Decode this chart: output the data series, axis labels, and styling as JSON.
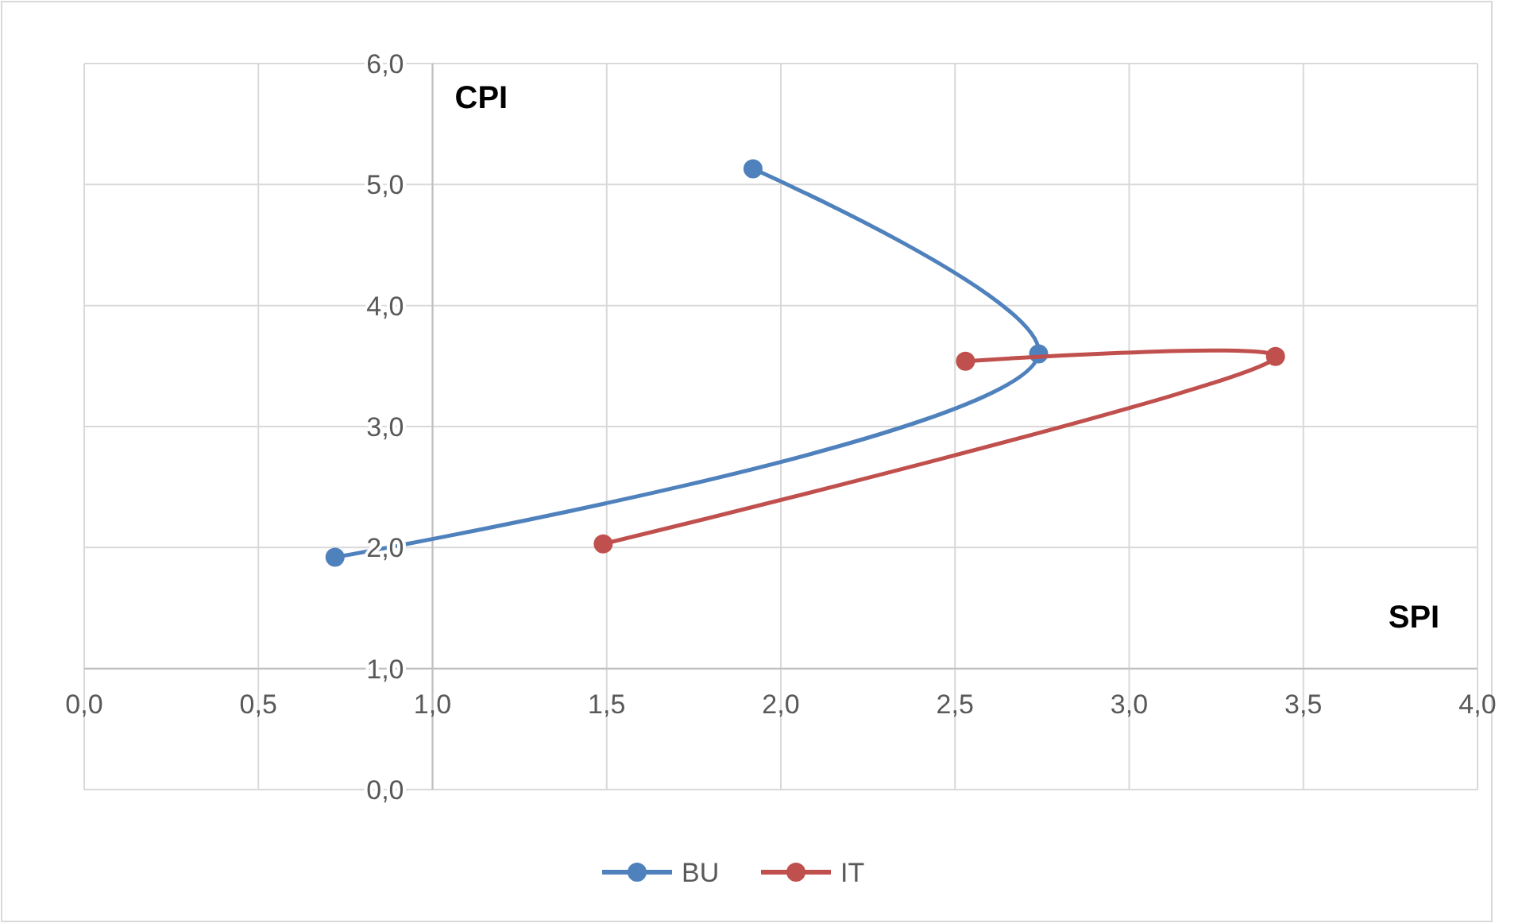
{
  "chart_data": {
    "type": "line",
    "xlabel": "SPI",
    "ylabel": "CPI",
    "xlim": [
      0,
      4
    ],
    "ylim": [
      0,
      6
    ],
    "xticks": [
      {
        "value": 0,
        "label": "0,0"
      },
      {
        "value": 0.5,
        "label": "0,5"
      },
      {
        "value": 1,
        "label": "1,0"
      },
      {
        "value": 1.5,
        "label": "1,5"
      },
      {
        "value": 2,
        "label": "2,0"
      },
      {
        "value": 2.5,
        "label": "2,5"
      },
      {
        "value": 3,
        "label": "3,0"
      },
      {
        "value": 3.5,
        "label": "3,5"
      },
      {
        "value": 4,
        "label": "4,0"
      }
    ],
    "yticks": [
      {
        "value": 0,
        "label": "0,0"
      },
      {
        "value": 1,
        "label": "1,0"
      },
      {
        "value": 2,
        "label": "2,0"
      },
      {
        "value": 3,
        "label": "3,0"
      },
      {
        "value": 4,
        "label": "4,0"
      },
      {
        "value": 5,
        "label": "5,0"
      },
      {
        "value": 6,
        "label": "6,0"
      }
    ],
    "grid": true,
    "legend": "bottom",
    "marker": "circle",
    "line_style": "solid",
    "series": [
      {
        "name": "BU",
        "color": "#4f81bd",
        "x": [
          1.92,
          2.74,
          0.72
        ],
        "values": [
          5.13,
          3.6,
          1.92
        ]
      },
      {
        "name": "IT",
        "color": "#c0504d",
        "x": [
          2.53,
          3.42,
          1.49
        ],
        "values": [
          3.54,
          3.58,
          2.03
        ]
      }
    ]
  }
}
